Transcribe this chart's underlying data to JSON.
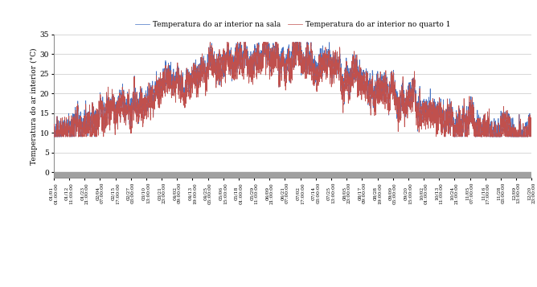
{
  "title": "",
  "ylabel": "Temperatura do ar interior (°C)",
  "ylim": [
    -1.5,
    35
  ],
  "yticks": [
    0,
    5,
    10,
    15,
    20,
    25,
    30,
    35
  ],
  "legend_sala": "Temperatura do ar interior na sala",
  "legend_quarto": "Temperatura do ar interior no quarto 1",
  "color_sala": "#4472C4",
  "color_quarto": "#C0504D",
  "linewidth": 0.5,
  "background_color": "#FFFFFF",
  "grid_color": "#C8C8C8",
  "below_zero_color": "#A0A0A0",
  "figsize": [
    6.68,
    3.57
  ],
  "dpi": 100,
  "xtick_labels": [
    "01/01\n01:00:00",
    "01/12\n11:00:00",
    "01/23\n21:00:00",
    "02/04\n07:00:00",
    "02/15\n17:00:00",
    "02/27\n03:00:00",
    "03/10\n13:00:00",
    "03/21\n23:00:00",
    "04/02\n09:00:00",
    "04/13\n19:00:00",
    "04/25\n05:00:00",
    "05/06\n15:00:00",
    "05/18\n01:00:00",
    "05/29\n11:00:00",
    "06/09\n21:00:00",
    "06/21\n07:00:00",
    "07/02\n17:00:00",
    "07/14\n03:00:00",
    "07/25\n13:00:00",
    "08/05\n23:00:00",
    "08/17\n09:00:00",
    "08/28\n19:00:00",
    "09/09\n05:00:00",
    "09/20\n15:00:00",
    "10/02\n01:00:00",
    "10/13\n11:00:00",
    "10/24\n21:00:00",
    "11/05\n07:00:00",
    "11/16\n17:00:00",
    "11/28\n03:00:00",
    "12/09\n13:00:00",
    "12/20\n23:00:00"
  ]
}
